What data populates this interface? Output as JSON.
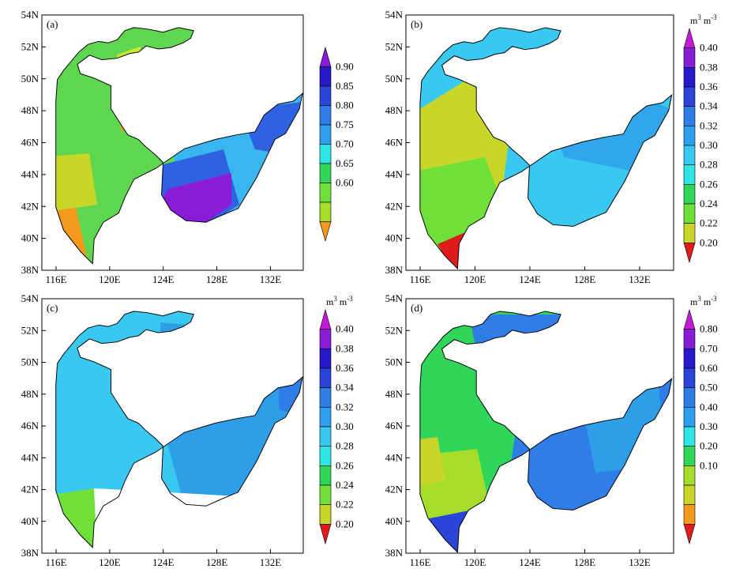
{
  "lat_labels": [
    "54N",
    "52N",
    "50N",
    "48N",
    "46N",
    "44N",
    "42N",
    "40N",
    "38N"
  ],
  "lon_labels": [
    "116E",
    "120E",
    "124E",
    "128E",
    "132E"
  ],
  "unit_label": {
    "base": "m",
    "exp": "3",
    "base2": " m",
    "exp2": "-3"
  },
  "colors": {
    "white": "#ffffff",
    "border": "#000000",
    "orange": "#f39a1e",
    "yellow": "#c8d62a",
    "yellowgreen": "#a6dc2a",
    "lightgreen": "#6fe03a",
    "green": "#2fd65a",
    "cyan": "#2ee6e6",
    "lightblue": "#39c8f0",
    "skyblue": "#2fa0ee",
    "blue": "#2f7de6",
    "darkblue": "#2a45d8",
    "navy": "#2619c9",
    "purple": "#8a1bd6",
    "magenta": "#c21bd6",
    "red": "#e01b1b"
  },
  "panels": [
    {
      "id": "a",
      "label": "(a)",
      "colorbar": {
        "labels": [
          "0.90",
          "0.85",
          "0.80",
          "0.75",
          "0.70",
          "0.65",
          "0.60"
        ],
        "has_unit": false
      }
    },
    {
      "id": "b",
      "label": "(b)",
      "colorbar": {
        "labels": [
          "0.40",
          "0.38",
          "0.36",
          "0.34",
          "0.32",
          "0.30",
          "0.28",
          "0.26",
          "0.24",
          "0.22",
          "0.20"
        ],
        "has_unit": true
      }
    },
    {
      "id": "c",
      "label": "(c)",
      "colorbar": {
        "labels": [
          "0.40",
          "0.38",
          "0.36",
          "0.34",
          "0.32",
          "0.30",
          "0.28",
          "0.26",
          "0.24",
          "0.22",
          "0.20"
        ],
        "has_unit": true
      }
    },
    {
      "id": "d",
      "label": "(d)",
      "colorbar": {
        "labels": [
          "0.80",
          "0.70",
          "0.60",
          "0.50",
          "0.40",
          "0.30",
          "0.20",
          "0.10"
        ],
        "has_unit": true
      }
    }
  ]
}
